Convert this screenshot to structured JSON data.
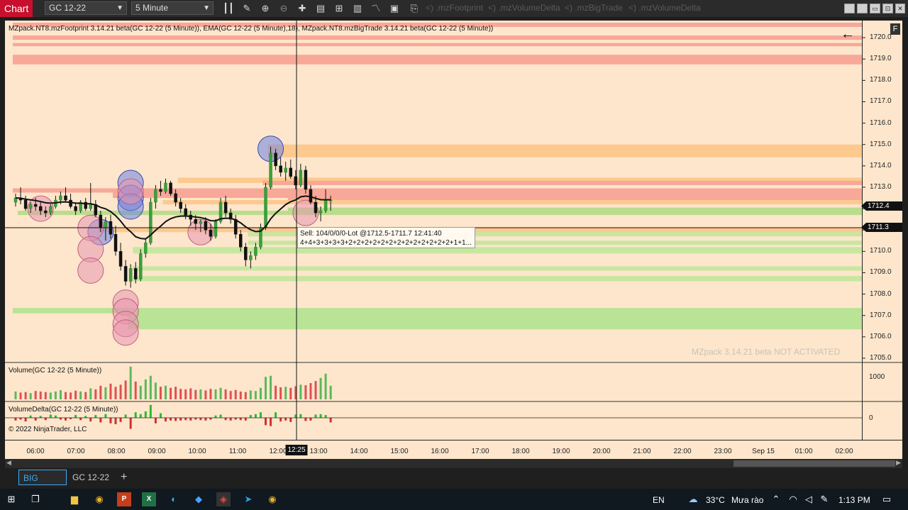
{
  "toolbar": {
    "chart_tab": "Chart",
    "instrument": "GC 12-22",
    "interval": "5 Minute",
    "indicator_links": [
      "<) .mzFootprint",
      "<) .mzVolumeDelta",
      "<) .mzBigTrade",
      "<) .mzVolumeDelta"
    ]
  },
  "chart": {
    "title": "MZpack.NT8.mzFootprint 3.14.21 beta(GC 12-22 (5 Minute)), EMA(GC 12-22 (5 Minute),18), MZpack.NT8.mzBigTrade 3.14.21 beta(GC 12-22 (5 Minute))",
    "volume_title": "Volume(GC 12-22 (5 Minute))",
    "delta_title": "VolumeDelta(GC 12-22 (5 Minute))",
    "copyright": "© 2022 NinjaTrader, LLC",
    "watermark": "MZpack 3.14.21 beta NOT ACTIVATED",
    "f_button": "F",
    "current_price": "1712.4",
    "crosshair_price": "1711.3",
    "crosshair_time": "12:25",
    "price_ticks": [
      "1720.0",
      "1719.0",
      "1718.0",
      "1717.0",
      "1716.0",
      "1715.0",
      "1714.0",
      "1713.0",
      "1712.0",
      "1711.0",
      "1710.0",
      "1709.0",
      "1708.0",
      "1707.0",
      "1706.0",
      "1705.0"
    ],
    "volume_tick": "1000",
    "delta_tick": "0",
    "time_labels": [
      "06:00",
      "07:00",
      "08:00",
      "09:00",
      "10:00",
      "11:00",
      "12:00",
      "13:00",
      "14:00",
      "15:00",
      "16:00",
      "17:00",
      "18:00",
      "19:00",
      "20:00",
      "21:00",
      "22:00",
      "23:00",
      "Sep 15",
      "01:00",
      "02:00"
    ],
    "tooltip_line1": "Sell:  104/0/0/0-Lot  @1712.5-1711.7  12:41:40",
    "tooltip_line2": "4+4+3+3+3+3+2+2+2+2+2+2+2+2+2+2+2+2+2+1+1..."
  },
  "chart_data": {
    "type": "candlestick",
    "ylim": [
      1704.8,
      1720.8
    ],
    "ema_period": 18,
    "candles": [
      [
        1712.3,
        1712.7,
        1712.1,
        1712.5
      ],
      [
        1712.5,
        1713.0,
        1712.2,
        1712.4
      ],
      [
        1712.4,
        1712.6,
        1711.9,
        1712.0
      ],
      [
        1712.0,
        1712.3,
        1711.8,
        1712.2
      ],
      [
        1712.2,
        1712.5,
        1711.9,
        1712.1
      ],
      [
        1712.1,
        1712.3,
        1711.7,
        1711.9
      ],
      [
        1711.9,
        1712.1,
        1711.6,
        1711.8
      ],
      [
        1711.8,
        1712.2,
        1711.7,
        1712.1
      ],
      [
        1712.1,
        1712.6,
        1712.0,
        1712.4
      ],
      [
        1712.4,
        1712.8,
        1712.2,
        1712.6
      ],
      [
        1712.6,
        1713.0,
        1712.3,
        1712.4
      ],
      [
        1712.4,
        1712.7,
        1712.0,
        1712.1
      ],
      [
        1712.1,
        1712.3,
        1711.7,
        1711.9
      ],
      [
        1711.9,
        1712.4,
        1711.8,
        1712.3
      ],
      [
        1712.3,
        1712.5,
        1711.9,
        1712.0
      ],
      [
        1712.0,
        1713.2,
        1711.9,
        1712.2
      ],
      [
        1712.2,
        1712.4,
        1711.6,
        1711.7
      ],
      [
        1711.7,
        1711.9,
        1710.9,
        1711.1
      ],
      [
        1711.1,
        1711.6,
        1710.5,
        1711.4
      ],
      [
        1711.4,
        1711.7,
        1710.6,
        1710.8
      ],
      [
        1710.8,
        1711.2,
        1709.8,
        1710.0
      ],
      [
        1710.0,
        1710.4,
        1709.1,
        1709.3
      ],
      [
        1709.3,
        1709.6,
        1708.4,
        1708.6
      ],
      [
        1708.6,
        1709.4,
        1708.3,
        1709.2
      ],
      [
        1709.2,
        1709.5,
        1708.5,
        1708.7
      ],
      [
        1708.7,
        1710.1,
        1708.6,
        1709.9
      ],
      [
        1709.9,
        1710.6,
        1709.7,
        1710.4
      ],
      [
        1710.4,
        1712.5,
        1710.3,
        1712.3
      ],
      [
        1712.3,
        1713.1,
        1712.0,
        1712.9
      ],
      [
        1712.9,
        1713.3,
        1712.6,
        1712.8
      ],
      [
        1712.8,
        1713.4,
        1712.7,
        1713.2
      ],
      [
        1713.2,
        1713.3,
        1712.6,
        1712.7
      ],
      [
        1712.7,
        1712.9,
        1712.1,
        1712.3
      ],
      [
        1712.3,
        1712.5,
        1711.8,
        1712.0
      ],
      [
        1712.0,
        1712.2,
        1711.5,
        1711.7
      ],
      [
        1711.7,
        1711.9,
        1711.2,
        1711.5
      ],
      [
        1711.5,
        1711.7,
        1711.0,
        1711.3
      ],
      [
        1711.3,
        1711.5,
        1710.9,
        1711.4
      ],
      [
        1711.4,
        1711.6,
        1710.8,
        1711.0
      ],
      [
        1711.0,
        1711.3,
        1710.5,
        1710.7
      ],
      [
        1710.7,
        1711.5,
        1710.6,
        1711.4
      ],
      [
        1711.4,
        1712.5,
        1711.3,
        1712.3
      ],
      [
        1712.3,
        1712.6,
        1711.6,
        1711.8
      ],
      [
        1711.8,
        1712.0,
        1711.3,
        1711.5
      ],
      [
        1711.5,
        1711.7,
        1710.6,
        1710.8
      ],
      [
        1710.8,
        1711.0,
        1710.0,
        1710.2
      ],
      [
        1710.2,
        1710.4,
        1709.3,
        1709.6
      ],
      [
        1709.6,
        1710.0,
        1709.2,
        1709.8
      ],
      [
        1709.8,
        1710.4,
        1709.6,
        1710.2
      ],
      [
        1710.2,
        1711.3,
        1710.1,
        1711.1
      ],
      [
        1711.1,
        1713.2,
        1711.0,
        1713.0
      ],
      [
        1713.0,
        1714.9,
        1712.9,
        1714.6
      ],
      [
        1714.6,
        1714.8,
        1713.8,
        1714.0
      ],
      [
        1714.0,
        1714.4,
        1713.5,
        1713.7
      ],
      [
        1713.7,
        1714.2,
        1713.3,
        1713.9
      ],
      [
        1713.9,
        1714.3,
        1713.4,
        1713.5
      ],
      [
        1713.5,
        1713.8,
        1712.9,
        1713.1
      ],
      [
        1713.1,
        1714.1,
        1713.0,
        1713.8
      ],
      [
        1713.8,
        1714.0,
        1712.7,
        1712.9
      ],
      [
        1712.9,
        1713.1,
        1712.2,
        1712.3
      ],
      [
        1712.3,
        1712.6,
        1711.6,
        1711.8
      ],
      [
        1711.8,
        1712.1,
        1711.4,
        1711.9
      ],
      [
        1711.9,
        1712.9,
        1711.8,
        1712.4
      ],
      [
        1712.4,
        1712.6,
        1711.9,
        1712.4
      ]
    ],
    "volume": [
      300,
      260,
      280,
      240,
      320,
      300,
      280,
      260,
      300,
      350,
      280,
      260,
      330,
      300,
      280,
      420,
      380,
      520,
      460,
      600,
      480,
      560,
      720,
      1250,
      680,
      520,
      760,
      900,
      640,
      480,
      520,
      440,
      480,
      400,
      380,
      420,
      360,
      380,
      340,
      400,
      380,
      440,
      380,
      320,
      360,
      300,
      280,
      340,
      320,
      440,
      860,
      900,
      520,
      460,
      480,
      440,
      500,
      560,
      540,
      620,
      700,
      820,
      980,
      520
    ],
    "delta": [
      -30,
      -20,
      -40,
      25,
      -30,
      20,
      -25,
      35,
      25,
      -20,
      -30,
      -15,
      30,
      -25,
      20,
      -40,
      30,
      -50,
      40,
      -60,
      -70,
      -45,
      35,
      -120,
      60,
      40,
      70,
      140,
      -60,
      50,
      -40,
      -30,
      -35,
      -30,
      -25,
      -30,
      -20,
      -25,
      -30,
      -20,
      25,
      35,
      -25,
      -30,
      -20,
      -25,
      -30,
      30,
      40,
      60,
      -80,
      -90,
      60,
      -40,
      -30,
      -45,
      35,
      40,
      -35,
      -30,
      35,
      40,
      30,
      -50
    ],
    "big_trades": [
      {
        "bar": 23,
        "price": 1713.2,
        "side": "buy"
      },
      {
        "bar": 23,
        "price": 1712.5,
        "side": "buy"
      },
      {
        "bar": 23,
        "price": 1712.1,
        "side": "buy"
      },
      {
        "bar": 17,
        "price": 1710.9,
        "side": "buy"
      },
      {
        "bar": 51,
        "price": 1714.8,
        "side": "buy"
      },
      {
        "bar": 5,
        "price": 1712.0,
        "side": "sell"
      },
      {
        "bar": 15,
        "price": 1711.1,
        "side": "sell"
      },
      {
        "bar": 15,
        "price": 1710.1,
        "side": "sell"
      },
      {
        "bar": 15,
        "price": 1709.1,
        "side": "sell"
      },
      {
        "bar": 22,
        "price": 1707.6,
        "side": "sell"
      },
      {
        "bar": 22,
        "price": 1707.2,
        "side": "sell"
      },
      {
        "bar": 22,
        "price": 1706.6,
        "side": "sell"
      },
      {
        "bar": 22,
        "price": 1706.2,
        "side": "sell"
      },
      {
        "bar": 23,
        "price": 1712.8,
        "side": "sell"
      },
      {
        "bar": 37,
        "price": 1710.9,
        "side": "sell"
      },
      {
        "bar": 58,
        "price": 1711.8,
        "side": "sell"
      }
    ],
    "zones": [
      {
        "from_bar": 0,
        "price_lo": 1720.5,
        "price_hi": 1720.7,
        "color": "#f8a898"
      },
      {
        "from_bar": 0,
        "price_lo": 1719.9,
        "price_hi": 1720.1,
        "color": "#f8a898"
      },
      {
        "from_bar": 0,
        "price_lo": 1719.6,
        "price_hi": 1719.75,
        "color": "#f8a898"
      },
      {
        "from_bar": 0,
        "price_lo": 1718.75,
        "price_hi": 1719.2,
        "color": "#f8a898"
      },
      {
        "from_bar": 51,
        "price_lo": 1714.4,
        "price_hi": 1715.0,
        "color": "#fdc98e"
      },
      {
        "from_bar": 33,
        "price_lo": 1713.2,
        "price_hi": 1713.45,
        "color": "#fdc98e"
      },
      {
        "from_bar": 50,
        "price_lo": 1713.1,
        "price_hi": 1713.3,
        "color": "#f8a898"
      },
      {
        "from_bar": 0,
        "price_lo": 1712.75,
        "price_hi": 1712.95,
        "color": "#f8a898"
      },
      {
        "from_bar": 20,
        "price_lo": 1712.5,
        "price_hi": 1712.75,
        "color": "#f8a898"
      },
      {
        "from_bar": 55,
        "price_lo": 1712.4,
        "price_hi": 1712.6,
        "color": "#f8a898"
      },
      {
        "from_bar": 30,
        "price_lo": 1712.2,
        "price_hi": 1712.4,
        "color": "#fdc98e"
      },
      {
        "from_bar": 55,
        "price_lo": 1711.85,
        "price_hi": 1712.05,
        "color": "#b9dd8c"
      },
      {
        "from_bar": 1,
        "price_lo": 1711.7,
        "price_hi": 1711.9,
        "color": "#b9dd8c"
      },
      {
        "from_bar": 17,
        "price_lo": 1710.9,
        "price_hi": 1711.1,
        "color": "#fdc98e"
      },
      {
        "from_bar": 47,
        "price_lo": 1710.7,
        "price_hi": 1710.9,
        "color": "#c8e6a0"
      },
      {
        "from_bar": 47,
        "price_lo": 1710.3,
        "price_hi": 1710.5,
        "color": "#c8e6a0"
      },
      {
        "from_bar": 24,
        "price_lo": 1709.9,
        "price_hi": 1710.2,
        "color": "#c8e6a0"
      },
      {
        "from_bar": 24,
        "price_lo": 1709.1,
        "price_hi": 1709.3,
        "color": "#c8e6a0"
      },
      {
        "from_bar": 24,
        "price_lo": 1708.6,
        "price_hi": 1708.85,
        "color": "#c8e6a0"
      },
      {
        "from_bar": 0,
        "price_lo": 1707.1,
        "price_hi": 1707.35,
        "color": "#b9e395"
      },
      {
        "from_bar": 23,
        "price_lo": 1706.35,
        "price_hi": 1707.1,
        "color": "#b9e395"
      }
    ]
  },
  "tabs": {
    "items": [
      "BIG",
      "GC 12-22"
    ],
    "add": "+"
  },
  "taskbar": {
    "lang": "EN",
    "weather_temp": "33°C",
    "weather_desc": "Mưa rào",
    "time": "1:13 PM"
  }
}
